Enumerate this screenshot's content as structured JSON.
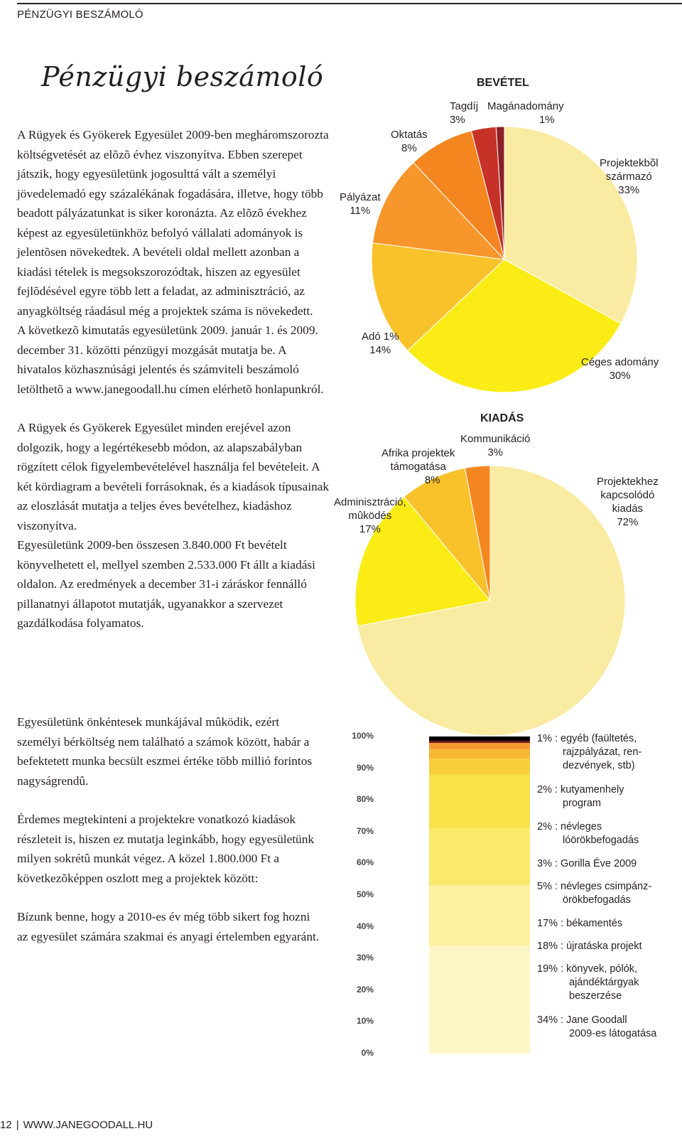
{
  "header": {
    "section": "PÉNZÜGYI BESZÁMOLÓ"
  },
  "title": "Pénzügyi beszámoló",
  "column1": {
    "paragraphs": [
      "A Rügyek és Gyökerek Egyesület 2009-ben megháromszorozta költségvetését az elõzõ évhez viszonyítva. Ebben szerepet játszik, hogy egyesületünk jogosulttá vált a személyi jövedelemadó egy százalékának fogadására, illetve, hogy több beadott pályázatunkat is siker koronázta. Az elõzõ évekhez képest az egyesületünkhöz befolyó vállalati adományok is jelentõsen növekedtek. A bevételi oldal mellett azonban a kiadási tételek is megsokszorozódtak, hiszen az egyesület fejlõdésével egyre több lett a feladat, az adminisztráció, az anyagköltség ráadásul még a projektek száma is növekedett.",
      "A következõ kimutatás egyesületünk 2009. január 1. és 2009. december 31. közötti pénzügyi mozgását mutatja be. A hivatalos közhasznúsági jelentés és számviteli beszámoló letölthetõ a www.janegoodall.hu címen elérhetõ honlapunkról.",
      "A Rügyek és Gyökerek Egyesület minden erejével azon dolgozik, hogy a legértékesebb módon, az alapszabályban rögzített célok figyelembevételével használja fel bevételeit. A két kördiagram a bevételi forrásoknak, és a kiadások típusainak az eloszlását mutatja a teljes éves bevételhez, kiadáshoz viszonyítva.",
      "Egyesületünk 2009-ben összesen 3.840.000 Ft bevételt könyvelhetett el, mellyel szemben 2.533.000 Ft állt a kiadási oldalon. Az eredmények a december 31-i záráskor fennálló pillanatnyi állapotot mutatják, ugyanakkor a szervezet gazdálkodása folyamatos."
    ]
  },
  "column2": {
    "paragraphs": [
      "Egyesületünk önkéntesek munkájával mûködik, ezért személyi bérköltség nem található a számok között, habár a befektetett munka becsült eszmei értéke több millió forintos nagyságrendû.",
      "Érdemes megtekinteni a projektekre vonatkozó kiadások részleteit is, hiszen ez mutatja leginkább, hogy egyesületünk milyen sokrétû munkát végez. A közel 1.800.000 Ft a következõképpen oszlott meg a projektek között:",
      "Bízunk benne, hogy a 2010-es év még több sikert fog hozni az egyesület számára szakmai és anyagi értelemben egyaránt."
    ]
  },
  "chart_data": [
    {
      "type": "pie",
      "title": "BEVÉTEL",
      "slices": [
        {
          "name": "Projektekbõl származó",
          "value": 33,
          "label": "33%",
          "color": "#f9eba1"
        },
        {
          "name": "Céges adomány",
          "value": 30,
          "label": "30%",
          "color": "#fbec16"
        },
        {
          "name": "Adó 1%",
          "value": 14,
          "label": "14%",
          "color": "#f9c22b"
        },
        {
          "name": "Pályázat",
          "value": 11,
          "label": "11%",
          "color": "#f7962b"
        },
        {
          "name": "Oktatás",
          "value": 8,
          "label": "8%",
          "color": "#f4861f"
        },
        {
          "name": "Tagdíj",
          "value": 3,
          "label": "3%",
          "color": "#c73228"
        },
        {
          "name": "Magánadomány",
          "value": 1,
          "label": "1%",
          "color": "#8c2027"
        }
      ]
    },
    {
      "type": "pie",
      "title": "KIADÁS",
      "slices": [
        {
          "name": "Projektekhez kapcsolódó kiadás",
          "value": 72,
          "label": "72%",
          "color": "#f9eba1"
        },
        {
          "name": "Adminisztráció, mûködés",
          "value": 17,
          "label": "17%",
          "color": "#fbec16"
        },
        {
          "name": "Afrika projektek támogatása",
          "value": 8,
          "label": "8%",
          "color": "#f9c22b"
        },
        {
          "name": "Kommunikáció",
          "value": 3,
          "label": "3%",
          "color": "#f4861f"
        }
      ]
    },
    {
      "type": "bar",
      "stacked": true,
      "yticks": [
        "0%",
        "10%",
        "20%",
        "30%",
        "40%",
        "50%",
        "60%",
        "70%",
        "80%",
        "90%",
        "100%"
      ],
      "ylim": [
        0,
        100
      ],
      "segments": [
        {
          "value": 34,
          "pct": "34% :",
          "label": "Jane Goodall 2009-es látogatása",
          "color": "#fdf6c6"
        },
        {
          "value": 19,
          "pct": "19% :",
          "label": "könyvek, pólók, ajándéktárgyak beszerzése",
          "color": "#fbf1a0"
        },
        {
          "value": 18,
          "pct": "18% :",
          "label": "újratáska projekt",
          "color": "#f9ea6c"
        },
        {
          "value": 17,
          "pct": "17% :",
          "label": "békamentés",
          "color": "#f8e24a"
        },
        {
          "value": 5,
          "pct": "5% :",
          "label": "névleges csimpánzörökbefogadás",
          "color": "#f7cf3c"
        },
        {
          "value": 3,
          "pct": "3% :",
          "label": "Gorilla Éve 2009",
          "color": "#f6b833"
        },
        {
          "value": 2,
          "pct": "2% :",
          "label": "névleges lóörökbefogadás",
          "color": "#f39a33"
        },
        {
          "value": 2,
          "pct": "2% :",
          "label": "kutyamenhely program",
          "color": "#ef7a2b"
        },
        {
          "value": 1,
          "pct": "1% :",
          "label": "egyéb (faültetés, rajzpályázat, rendezvények, stb)",
          "color": "#b8322a"
        }
      ]
    }
  ],
  "legend_text": {
    "l1": "1% : egyéb (faültetés,",
    "l1b": "rajzpályázat, ren-",
    "l1c": "dezvények, stb)",
    "l2": "2% : kutyamenhely",
    "l2b": "program",
    "l3": "2% : névleges",
    "l3b": "lóörökbefogadás",
    "l4": "3% : Gorilla Éve 2009",
    "l5": "5% : névleges csimpánz-",
    "l5b": "örökbefogadás",
    "l6": "17% : békamentés",
    "l7": "18% : újratáska projekt",
    "l8": "19% : könyvek, pólók,",
    "l8b": "ajándéktárgyak",
    "l8c": "beszerzése",
    "l9": "34% : Jane Goodall",
    "l9b": "2009-es látogatása"
  },
  "pie_labels": {
    "bev_title": "BEVÉTEL",
    "tagdij": "Tagdíj",
    "tagdij_pct": "3%",
    "magan": "Magánadomány",
    "magan_pct": "1%",
    "oktatas": "Oktatás",
    "oktatas_pct": "8%",
    "palyazat": "Pályázat",
    "palyazat_pct": "11%",
    "projektbol": "Projektekbõl",
    "projektbol2": "származó",
    "projektbol_pct": "33%",
    "ado": "Adó 1%",
    "ado_pct": "14%",
    "ceges": "Céges adomány",
    "ceges_pct": "30%",
    "kiad_title": "KIADÁS",
    "komm": "Kommunikáció",
    "komm_pct": "3%",
    "afrika": "Afrika projektek",
    "afrika2": "támogatása",
    "afrika_pct": "8%",
    "admin": "Adminisztráció,",
    "admin2": "mûködés",
    "admin_pct": "17%",
    "projhez": "Projektekhez",
    "projhez2": "kapcsolódó",
    "projhez3": "kiadás",
    "projhez_pct": "72%"
  },
  "footer": {
    "page": "12",
    "site": "WWW.JANEGOODALL.HU"
  }
}
